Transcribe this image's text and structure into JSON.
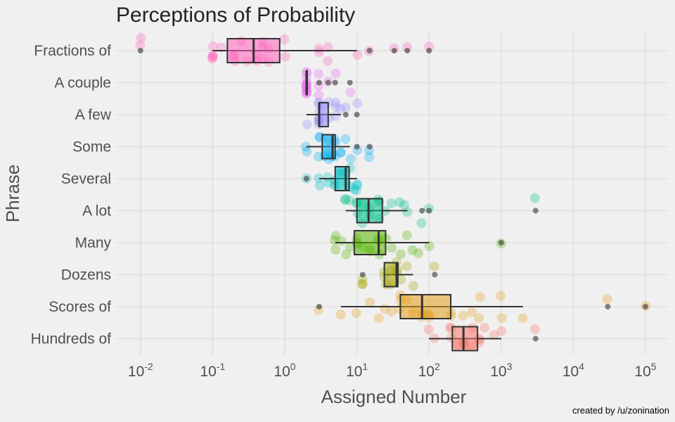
{
  "chart_data": {
    "type": "box",
    "title": "Perceptions of Probability",
    "xlabel": "Assigned Number",
    "ylabel": "Phrase",
    "credit": "created by /u/zonination",
    "x_scale": "log10",
    "xlim": [
      0.005,
      200000
    ],
    "x_ticks": [
      {
        "base": "10",
        "exp": "-2",
        "value": 0.01
      },
      {
        "base": "10",
        "exp": "-1",
        "value": 0.1
      },
      {
        "base": "10",
        "exp": "0",
        "value": 1
      },
      {
        "base": "10",
        "exp": "1",
        "value": 10
      },
      {
        "base": "10",
        "exp": "2",
        "value": 100
      },
      {
        "base": "10",
        "exp": "3",
        "value": 1000
      },
      {
        "base": "10",
        "exp": "4",
        "value": 10000
      },
      {
        "base": "10",
        "exp": "5",
        "value": 100000
      }
    ],
    "grid": true,
    "legend": "none",
    "categories": [
      "Fractions of",
      "A couple",
      "A few",
      "Some",
      "Several",
      "A lot",
      "Many",
      "Dozens",
      "Scores of",
      "Hundreds of"
    ],
    "series": [
      {
        "category": "Fractions of",
        "color": "#ff62bc",
        "whisker_low": 0.1,
        "q1": 0.16,
        "median": 0.37,
        "q3": 0.85,
        "whisker_high": 10,
        "outliers": [
          0.01,
          15,
          33,
          50,
          100
        ],
        "points": [
          0.01,
          0.01,
          0.1,
          0.1,
          0.1,
          0.1,
          0.1,
          0.13,
          0.2,
          0.2,
          0.2,
          0.25,
          0.3,
          0.4,
          0.4,
          0.5,
          0.5,
          0.5,
          0.6,
          0.6,
          1,
          1,
          3,
          3,
          4,
          4,
          10,
          15,
          33,
          50,
          100
        ]
      },
      {
        "category": "A couple",
        "color": "#e76bf3",
        "whisker_low": 2,
        "q1": 2,
        "median": 2,
        "q3": 2,
        "whisker_high": 2,
        "outliers": [
          3,
          4,
          5,
          8
        ],
        "points": [
          2,
          2,
          2,
          2,
          2,
          2,
          2,
          2,
          2,
          2,
          2,
          2,
          3,
          3,
          3,
          4,
          5,
          8
        ]
      },
      {
        "category": "A few",
        "color": "#9590ff",
        "whisker_low": 2,
        "q1": 3,
        "median": 3,
        "q3": 4,
        "whisker_high": 6,
        "outliers": [
          7,
          10
        ],
        "points": [
          2,
          3,
          3,
          3,
          3,
          3,
          3,
          3,
          3,
          3.5,
          4,
          4,
          5,
          5,
          5,
          6,
          7,
          10
        ]
      },
      {
        "category": "Some",
        "color": "#00b0f6",
        "whisker_low": 2,
        "q1": 3.3,
        "median": 4.6,
        "q3": 5,
        "whisker_high": 8,
        "outliers": [
          10,
          15
        ],
        "points": [
          2,
          2,
          3,
          3,
          3,
          3.5,
          4,
          4,
          4,
          4.5,
          5,
          5,
          5,
          6,
          6,
          7,
          8,
          10,
          15,
          15
        ]
      },
      {
        "category": "Several",
        "color": "#00bfc4",
        "whisker_low": 3,
        "q1": 5,
        "median": 7,
        "q3": 7.8,
        "whisker_high": 10,
        "outliers": [
          2
        ],
        "points": [
          2,
          3,
          3,
          4,
          4,
          5,
          5,
          5,
          6,
          6,
          7,
          7,
          8,
          8,
          9,
          10,
          10,
          10
        ]
      },
      {
        "category": "A lot",
        "color": "#00c08b",
        "whisker_low": 7,
        "q1": 10,
        "median": 14.5,
        "q3": 22.5,
        "whisker_high": 50,
        "outliers": [
          80,
          100,
          3000
        ],
        "points": [
          7,
          7,
          8,
          10,
          10,
          10,
          12,
          12,
          15,
          15,
          20,
          20,
          20,
          25,
          30,
          40,
          45,
          50,
          80,
          100,
          3000
        ]
      },
      {
        "category": "Many",
        "color": "#53b400",
        "whisker_low": 5,
        "q1": 9.2,
        "median": 20,
        "q3": 25,
        "whisker_high": 100,
        "outliers": [
          1000
        ],
        "points": [
          5,
          5,
          5,
          6,
          7,
          8,
          10,
          10,
          10,
          12,
          15,
          15,
          20,
          20,
          20,
          25,
          30,
          40,
          50,
          60,
          70,
          100,
          1000
        ]
      },
      {
        "category": "Dozens",
        "color": "#a3a500",
        "whisker_low": 24,
        "q1": 24,
        "median": 35.5,
        "q3": 37,
        "whisker_high": 60,
        "outliers": [
          12,
          120
        ],
        "points": [
          12,
          12,
          12,
          24,
          24,
          25,
          30,
          30,
          36,
          36,
          36,
          40,
          50,
          60,
          120
        ]
      },
      {
        "category": "Scores of",
        "color": "#e39e1a",
        "whisker_low": 6,
        "q1": 40,
        "median": 80,
        "q3": 200,
        "whisker_high": 2000,
        "outliers": [
          3,
          30000,
          100000
        ],
        "points": [
          3,
          6,
          10,
          15,
          20,
          24,
          30,
          40,
          40,
          40,
          50,
          60,
          60,
          80,
          80,
          80,
          100,
          100,
          100,
          200,
          200,
          300,
          400,
          500,
          500,
          1000,
          1000,
          2000,
          30000,
          100000
        ]
      },
      {
        "category": "Hundreds of",
        "color": "#f8766d",
        "whisker_low": 100,
        "q1": 210,
        "median": 300,
        "q3": 470,
        "whisker_high": 1000,
        "outliers": [
          3000
        ],
        "points": [
          100,
          120,
          200,
          200,
          200,
          250,
          300,
          300,
          300,
          300,
          400,
          400,
          500,
          500,
          500,
          600,
          800,
          1000,
          3000
        ]
      }
    ]
  }
}
